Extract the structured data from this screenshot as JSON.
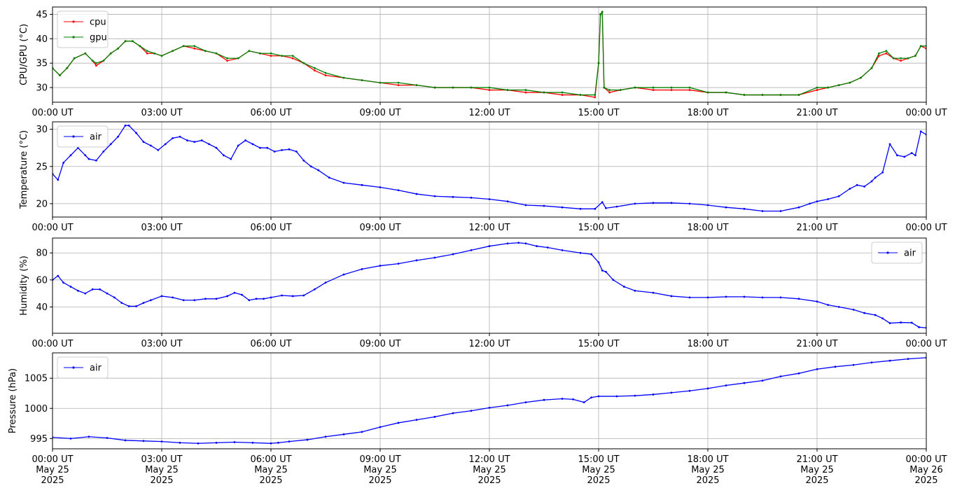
{
  "chart_data": [
    {
      "type": "line",
      "ylabel": "CPU/GPU (°C)",
      "ylim": [
        27,
        46.5
      ],
      "yticks": [
        30,
        35,
        40,
        45
      ],
      "xlim": [
        0,
        24
      ],
      "xticks": [
        0,
        3,
        6,
        9,
        12,
        15,
        18,
        21,
        24
      ],
      "xtick_labels": [
        "00:00 UT",
        "03:00 UT",
        "06:00 UT",
        "09:00 UT",
        "12:00 UT",
        "15:00 UT",
        "18:00 UT",
        "21:00 UT",
        "00:00 UT"
      ],
      "grid": true,
      "legend_position": "top-left",
      "series": [
        {
          "name": "cpu",
          "color": "#ff0000",
          "x": [
            0,
            0.2,
            0.4,
            0.6,
            0.9,
            1.1,
            1.2,
            1.4,
            1.6,
            1.8,
            2.0,
            2.2,
            2.4,
            2.6,
            2.8,
            3.0,
            3.3,
            3.6,
            3.9,
            4.2,
            4.5,
            4.8,
            5.1,
            5.4,
            5.7,
            6.0,
            6.3,
            6.6,
            6.9,
            7.2,
            7.5,
            8.0,
            8.5,
            9.0,
            9.5,
            10.0,
            10.5,
            11.0,
            11.5,
            12.0,
            12.5,
            13.0,
            13.5,
            14.0,
            14.5,
            14.9,
            15.0,
            15.05,
            15.1,
            15.15,
            15.3,
            15.6,
            16.0,
            16.5,
            17.0,
            17.5,
            18.0,
            18.5,
            19.0,
            19.5,
            20.0,
            20.5,
            21.0,
            21.3,
            21.6,
            21.9,
            22.2,
            22.5,
            22.7,
            22.9,
            23.1,
            23.3,
            23.5,
            23.7,
            23.85,
            24.0
          ],
          "values": [
            34,
            32.5,
            34,
            36,
            37,
            35.5,
            34.5,
            35.5,
            37,
            38,
            39.5,
            39.5,
            38.5,
            37,
            37,
            36.5,
            37.5,
            38.5,
            38,
            37.5,
            37,
            35.5,
            36,
            37.5,
            37,
            36.5,
            36.5,
            36,
            35,
            33.5,
            32.5,
            32,
            31.5,
            31,
            30.5,
            30.5,
            30,
            30,
            30,
            29.5,
            29.5,
            29,
            29,
            28.5,
            28.5,
            28,
            35,
            45,
            45.5,
            30,
            29,
            29.5,
            30,
            29.5,
            29.5,
            29.5,
            29,
            29,
            28.5,
            28.5,
            28.5,
            28.5,
            29.5,
            30,
            30.5,
            31,
            32,
            34,
            36.5,
            37,
            36,
            35.5,
            36,
            36.5,
            38.5,
            38
          ]
        },
        {
          "name": "gpu",
          "color": "#008000",
          "x": [
            0,
            0.2,
            0.4,
            0.6,
            0.9,
            1.1,
            1.2,
            1.4,
            1.6,
            1.8,
            2.0,
            2.2,
            2.4,
            2.6,
            2.8,
            3.0,
            3.3,
            3.6,
            3.9,
            4.2,
            4.5,
            4.8,
            5.1,
            5.4,
            5.7,
            6.0,
            6.3,
            6.6,
            6.9,
            7.2,
            7.5,
            8.0,
            8.5,
            9.0,
            9.5,
            10.0,
            10.5,
            11.0,
            11.5,
            12.0,
            12.5,
            13.0,
            13.5,
            14.0,
            14.5,
            14.9,
            15.0,
            15.05,
            15.1,
            15.15,
            15.3,
            15.6,
            16.0,
            16.5,
            17.0,
            17.5,
            18.0,
            18.5,
            19.0,
            19.5,
            20.0,
            20.5,
            21.0,
            21.3,
            21.6,
            21.9,
            22.2,
            22.5,
            22.7,
            22.9,
            23.1,
            23.3,
            23.5,
            23.7,
            23.85,
            24.0
          ],
          "values": [
            34,
            32.5,
            34,
            36,
            37,
            35.5,
            35,
            35.5,
            37,
            38,
            39.5,
            39.5,
            38.5,
            37.5,
            37,
            36.5,
            37.5,
            38.5,
            38.5,
            37.5,
            37,
            36,
            36,
            37.5,
            37,
            37,
            36.5,
            36.5,
            35,
            34,
            33,
            32,
            31.5,
            31,
            31,
            30.5,
            30,
            30,
            30,
            30,
            29.5,
            29.5,
            29,
            29,
            28.5,
            28.5,
            35,
            45,
            45.5,
            30,
            29.5,
            29.5,
            30,
            30,
            30,
            30,
            29,
            29,
            28.5,
            28.5,
            28.5,
            28.5,
            30,
            30,
            30.5,
            31,
            32,
            34,
            37,
            37.5,
            36,
            36,
            36,
            36.5,
            38.5,
            38.5
          ]
        }
      ]
    },
    {
      "type": "line",
      "ylabel": "Temperature (°C)",
      "ylim": [
        18.2,
        31
      ],
      "yticks": [
        20,
        25,
        30
      ],
      "xlim": [
        0,
        24
      ],
      "xticks": [
        0,
        3,
        6,
        9,
        12,
        15,
        18,
        21,
        24
      ],
      "xtick_labels": [
        "00:00 UT",
        "03:00 UT",
        "06:00 UT",
        "09:00 UT",
        "12:00 UT",
        "15:00 UT",
        "18:00 UT",
        "21:00 UT",
        "00:00 UT"
      ],
      "grid": true,
      "legend_position": "top-left",
      "series": [
        {
          "name": "air",
          "color": "#0000ff",
          "x": [
            0,
            0.15,
            0.3,
            0.5,
            0.7,
            0.9,
            1.0,
            1.2,
            1.4,
            1.6,
            1.8,
            2.0,
            2.1,
            2.3,
            2.5,
            2.7,
            2.9,
            3.1,
            3.3,
            3.5,
            3.7,
            3.9,
            4.1,
            4.3,
            4.5,
            4.7,
            4.9,
            5.1,
            5.3,
            5.5,
            5.7,
            5.9,
            6.1,
            6.3,
            6.5,
            6.7,
            6.9,
            7.1,
            7.3,
            7.6,
            8.0,
            8.5,
            9.0,
            9.5,
            10.0,
            10.5,
            11.0,
            11.5,
            12.0,
            12.5,
            13.0,
            13.5,
            14.0,
            14.5,
            14.9,
            15.1,
            15.2,
            15.5,
            16.0,
            16.5,
            17.0,
            17.5,
            18.0,
            18.5,
            19.0,
            19.5,
            20.0,
            20.5,
            20.8,
            21.0,
            21.3,
            21.6,
            21.9,
            22.1,
            22.3,
            22.5,
            22.6,
            22.8,
            23.0,
            23.2,
            23.4,
            23.6,
            23.7,
            23.85,
            24.0
          ],
          "values": [
            24,
            23.2,
            25.5,
            26.5,
            27.5,
            26.5,
            26,
            25.8,
            27,
            28,
            29,
            30.5,
            30.5,
            29.5,
            28.3,
            27.8,
            27.2,
            28,
            28.8,
            29,
            28.5,
            28.3,
            28.5,
            28,
            27.5,
            26.5,
            26,
            27.8,
            28.5,
            28,
            27.5,
            27.5,
            27,
            27.2,
            27.3,
            27,
            25.8,
            25,
            24.5,
            23.5,
            22.8,
            22.5,
            22.2,
            21.8,
            21.3,
            21,
            20.9,
            20.8,
            20.6,
            20.3,
            19.8,
            19.7,
            19.5,
            19.3,
            19.3,
            20.2,
            19.4,
            19.6,
            20,
            20.1,
            20.1,
            20,
            19.8,
            19.5,
            19.3,
            19,
            19,
            19.5,
            20,
            20.3,
            20.6,
            21,
            22,
            22.5,
            22.3,
            23,
            23.5,
            24.2,
            28,
            26.5,
            26.3,
            26.8,
            26.5,
            29.7,
            29.3
          ]
        }
      ]
    },
    {
      "type": "line",
      "ylabel": "Humidity (%)",
      "ylim": [
        20.5,
        91
      ],
      "yticks": [
        40,
        60,
        80
      ],
      "xlim": [
        0,
        24
      ],
      "xticks": [
        0,
        3,
        6,
        9,
        12,
        15,
        18,
        21,
        24
      ],
      "xtick_labels": [
        "00:00 UT",
        "03:00 UT",
        "06:00 UT",
        "09:00 UT",
        "12:00 UT",
        "15:00 UT",
        "18:00 UT",
        "21:00 UT",
        "00:00 UT"
      ],
      "grid": true,
      "legend_position": "top-right",
      "series": [
        {
          "name": "air",
          "color": "#0000ff",
          "x": [
            0,
            0.15,
            0.3,
            0.5,
            0.7,
            0.9,
            1.1,
            1.3,
            1.5,
            1.7,
            1.9,
            2.1,
            2.3,
            2.5,
            2.7,
            3.0,
            3.3,
            3.6,
            3.9,
            4.2,
            4.5,
            4.8,
            5.0,
            5.2,
            5.4,
            5.6,
            5.8,
            6.0,
            6.3,
            6.6,
            6.9,
            7.2,
            7.5,
            8.0,
            8.5,
            9.0,
            9.5,
            10.0,
            10.5,
            11.0,
            11.5,
            12.0,
            12.5,
            12.8,
            13.0,
            13.3,
            13.6,
            14.0,
            14.5,
            14.8,
            15.0,
            15.1,
            15.2,
            15.4,
            15.7,
            16.0,
            16.5,
            17.0,
            17.5,
            18.0,
            18.5,
            19.0,
            19.5,
            20.0,
            20.5,
            21.0,
            21.3,
            21.6,
            22.0,
            22.3,
            22.6,
            22.8,
            23.0,
            23.3,
            23.6,
            23.8,
            24.0
          ],
          "values": [
            60,
            63,
            58,
            55,
            52,
            50,
            53,
            53,
            50,
            47,
            43,
            40.5,
            40.5,
            43,
            45,
            48,
            47,
            45,
            45,
            46,
            46,
            48,
            50.5,
            49,
            45,
            46,
            46,
            47,
            48.5,
            48,
            48.5,
            53,
            58,
            64,
            68,
            70.5,
            72,
            74.5,
            76.5,
            79,
            82,
            85,
            87,
            87.5,
            87,
            85,
            84,
            82,
            80,
            79,
            73,
            67,
            66,
            60,
            55,
            52,
            50.5,
            48,
            47,
            47,
            47.5,
            47.5,
            47,
            47,
            46,
            44,
            41.5,
            40,
            38,
            35.5,
            34,
            31.5,
            28,
            28.5,
            28.3,
            25,
            24.5
          ]
        }
      ]
    },
    {
      "type": "line",
      "ylabel": "Pressure (hPa)",
      "ylim": [
        993.3,
        1009.2
      ],
      "yticks": [
        995,
        1000,
        1005
      ],
      "xlim": [
        0,
        24
      ],
      "xticks": [
        0,
        3,
        6,
        9,
        12,
        15,
        18,
        21,
        24
      ],
      "xtick_labels": [
        "00:00 UT\nMay 25\n2025",
        "03:00 UT\nMay 25\n2025",
        "06:00 UT\nMay 25\n2025",
        "09:00 UT\nMay 25\n2025",
        "12:00 UT\nMay 25\n2025",
        "15:00 UT\nMay 25\n2025",
        "18:00 UT\nMay 25\n2025",
        "21:00 UT\nMay 25\n2025",
        "00:00 UT\nMay 26\n2025"
      ],
      "grid": true,
      "legend_position": "top-left",
      "series": [
        {
          "name": "air",
          "color": "#0000ff",
          "x": [
            0,
            0.5,
            1.0,
            1.5,
            2.0,
            2.5,
            3.0,
            3.5,
            4.0,
            4.5,
            5.0,
            5.5,
            6.0,
            6.2,
            6.5,
            7.0,
            7.5,
            8.0,
            8.5,
            9.0,
            9.5,
            10.0,
            10.5,
            11.0,
            11.5,
            12.0,
            12.5,
            13.0,
            13.5,
            14.0,
            14.3,
            14.6,
            14.8,
            15.0,
            15.5,
            16.0,
            16.5,
            17.0,
            17.5,
            18.0,
            18.5,
            19.0,
            19.5,
            20.0,
            20.5,
            21.0,
            21.5,
            22.0,
            22.5,
            23.0,
            23.5,
            24.0
          ],
          "values": [
            995.2,
            995,
            995.3,
            995.1,
            994.7,
            994.6,
            994.5,
            994.3,
            994.2,
            994.3,
            994.4,
            994.3,
            994.2,
            994.3,
            994.5,
            994.8,
            995.3,
            995.7,
            996.1,
            996.9,
            997.6,
            998.1,
            998.6,
            999.2,
            999.6,
            1000.1,
            1000.5,
            1001,
            1001.4,
            1001.6,
            1001.5,
            1001,
            1001.8,
            1002,
            1002,
            1002.1,
            1002.3,
            1002.6,
            1002.9,
            1003.3,
            1003.8,
            1004.2,
            1004.6,
            1005.3,
            1005.8,
            1006.5,
            1006.9,
            1007.2,
            1007.6,
            1007.9,
            1008.2,
            1008.4
          ]
        }
      ]
    }
  ]
}
